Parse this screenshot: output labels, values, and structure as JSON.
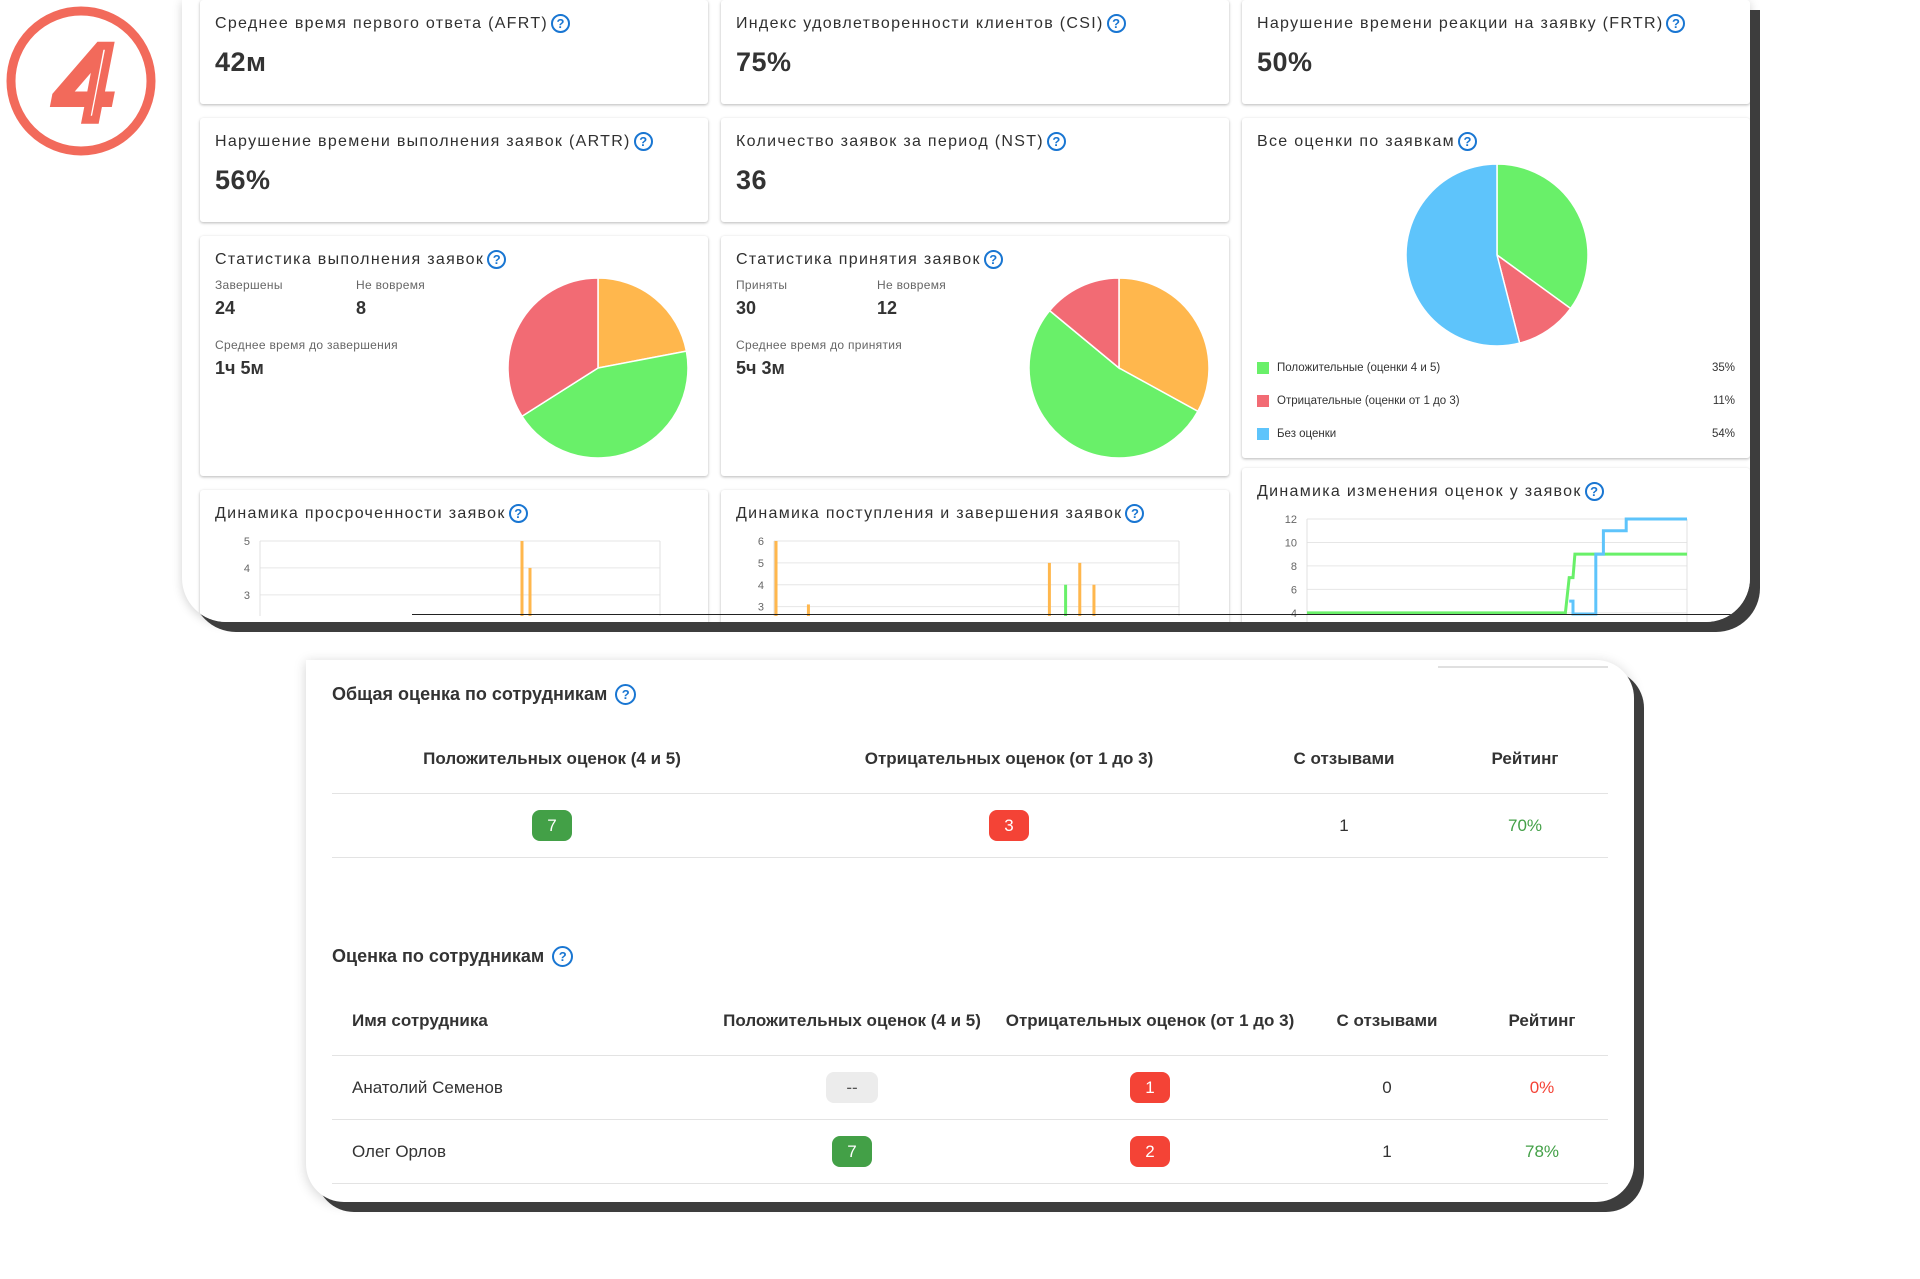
{
  "step_number": "4",
  "colors": {
    "orange": "#ffb74d",
    "green": "#69f069",
    "red": "#f26b74",
    "blue": "#5ec4fb",
    "accent_blue": "#1976d2",
    "badge": "#f26a5b"
  },
  "help_icon_glyph": "?",
  "kpi": {
    "afrt": {
      "label": "Среднее время первого ответа (AFRT)",
      "value": "42м"
    },
    "csi": {
      "label": "Индекс удовлетворенности клиентов (CSI)",
      "value": "75%"
    },
    "frtr": {
      "label": "Нарушение времени реакции на заявку (FRTR)",
      "value": "50%"
    },
    "artr": {
      "label": "Нарушение времени выполнения заявок (ARTR)",
      "value": "56%"
    },
    "nst": {
      "label": "Количество заявок за период (NST)",
      "value": "36"
    }
  },
  "completion_stats": {
    "title": "Статистика выполнения заявок",
    "completed_label": "Завершены",
    "completed_value": "24",
    "late_label": "Не вовремя",
    "late_value": "8",
    "avg_label": "Среднее время до завершения",
    "avg_value": "1ч 5м"
  },
  "acceptance_stats": {
    "title": "Статистика принятия заявок",
    "accepted_label": "Приняты",
    "accepted_value": "30",
    "late_label": "Не вовремя",
    "late_value": "12",
    "avg_label": "Среднее время до принятия",
    "avg_value": "5ч 3м"
  },
  "all_ratings": {
    "title": "Все оценки по заявкам",
    "legend": [
      {
        "label": "Положительные (оценки 4 и 5)",
        "pct": "35%",
        "color": "#69f069"
      },
      {
        "label": "Отрицательные (оценки от 1 до 3)",
        "pct": "11%",
        "color": "#f26b74"
      },
      {
        "label": "Без оценки",
        "pct": "54%",
        "color": "#5ec4fb"
      }
    ]
  },
  "overdue_dynamics": {
    "title": "Динамика просроченности заявок"
  },
  "intake_dynamics": {
    "title": "Динамика поступления и завершения заявок"
  },
  "rating_dynamics": {
    "title": "Динамика изменения оценок у заявок"
  },
  "chart_data": [
    {
      "type": "pie",
      "slices": [
        {
          "value": 22,
          "color": "#ffb74d"
        },
        {
          "value": 44,
          "color": "#69f069"
        },
        {
          "value": 34,
          "color": "#f26b74"
        }
      ]
    },
    {
      "type": "pie",
      "slices": [
        {
          "value": 33,
          "color": "#ffb74d"
        },
        {
          "value": 53,
          "color": "#69f069"
        },
        {
          "value": 14,
          "color": "#f26b74"
        }
      ]
    },
    {
      "type": "pie",
      "slices": [
        {
          "value": 35,
          "color": "#69f069"
        },
        {
          "value": 11,
          "color": "#f26b74"
        },
        {
          "value": 54,
          "color": "#5ec4fb"
        }
      ]
    },
    {
      "type": "bar",
      "yticks": [
        "5",
        "4",
        "3"
      ],
      "ylim": [
        2.4,
        5
      ],
      "bars": [
        {
          "x": 0.655,
          "value": 5,
          "color": "#ffb74d"
        },
        {
          "x": 0.675,
          "value": 4,
          "color": "#ffb74d"
        }
      ]
    },
    {
      "type": "bar",
      "yticks": [
        "6",
        "5",
        "4",
        "3"
      ],
      "ylim": [
        2.8,
        6
      ],
      "bars": [
        {
          "x": 0.005,
          "value": 6,
          "color": "#ffb74d"
        },
        {
          "x": 0.085,
          "value": 3.1,
          "color": "#ffb74d"
        },
        {
          "x": 0.68,
          "value": 5,
          "color": "#ffb74d"
        },
        {
          "x": 0.72,
          "value": 4,
          "color": "#69f069"
        },
        {
          "x": 0.755,
          "value": 5,
          "color": "#ffb74d"
        },
        {
          "x": 0.79,
          "value": 4,
          "color": "#ffb74d"
        }
      ]
    },
    {
      "type": "line",
      "yticks": [
        "12",
        "10",
        "8",
        "6",
        "4"
      ],
      "ylim": [
        3.9,
        12
      ],
      "series": [
        {
          "color": "#69f069",
          "points": [
            [
              0,
              4
            ],
            [
              0.68,
              4
            ],
            [
              0.69,
              7
            ],
            [
              0.7,
              7
            ],
            [
              0.705,
              9
            ],
            [
              1,
              9
            ]
          ]
        },
        {
          "color": "#5ec4fb",
          "points": [
            [
              0.69,
              5
            ],
            [
              0.7,
              5
            ],
            [
              0.7,
              3.9
            ],
            [
              0.76,
              3.9
            ],
            [
              0.76,
              9
            ],
            [
              0.78,
              9
            ],
            [
              0.78,
              11
            ],
            [
              0.84,
              11
            ],
            [
              0.84,
              12
            ],
            [
              1,
              12
            ]
          ]
        }
      ]
    }
  ],
  "overall_by_staff": {
    "title": "Общая оценка по сотрудникам",
    "headers": [
      "Положительных оценок (4 и 5)",
      "Отрицательных оценок (от 1 до 3)",
      "С отзывами",
      "Рейтинг"
    ],
    "row": {
      "positive": "7",
      "negative": "3",
      "with_reviews": "1",
      "rating": "70%"
    }
  },
  "by_staff": {
    "title": "Оценка по сотрудникам",
    "headers": [
      "Имя сотрудника",
      "Положительных оценок (4 и 5)",
      "Отрицательных оценок (от 1 до 3)",
      "С отзывами",
      "Рейтинг"
    ],
    "rows": [
      {
        "name": "Анатолий Семенов",
        "positive": "--",
        "negative": "1",
        "with_reviews": "0",
        "rating": "0%"
      },
      {
        "name": "Олег Орлов",
        "positive": "7",
        "negative": "2",
        "with_reviews": "1",
        "rating": "78%"
      }
    ]
  }
}
